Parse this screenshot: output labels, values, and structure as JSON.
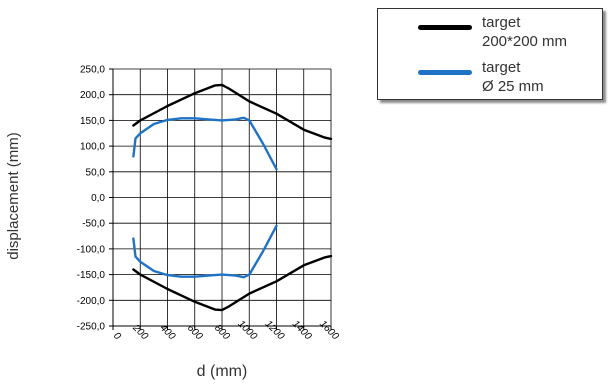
{
  "chart_data": {
    "type": "line",
    "title": "",
    "xlabel": "d (mm)",
    "ylabel": "displacement (mm)",
    "xlim": [
      0,
      1600
    ],
    "ylim": [
      -250,
      250
    ],
    "x_ticks": [
      "0",
      "200",
      "400",
      "600",
      "800",
      "1000",
      "1200",
      "1400",
      "1600"
    ],
    "y_ticks": [
      "250,0",
      "200,0",
      "150,0",
      "100,0",
      "50,0",
      "0,0",
      "-50,0",
      "-100,0",
      "-150,0",
      "-200,0",
      "-250,0"
    ],
    "grid": true,
    "legend_position": "top-right",
    "series": [
      {
        "name": "target\n200*200 mm",
        "color": "#000000",
        "upper": [
          [
            150,
            140
          ],
          [
            200,
            150
          ],
          [
            400,
            178
          ],
          [
            600,
            203
          ],
          [
            750,
            218
          ],
          [
            800,
            219
          ],
          [
            850,
            212
          ],
          [
            1000,
            187
          ],
          [
            1200,
            163
          ],
          [
            1400,
            132
          ],
          [
            1550,
            117
          ],
          [
            1600,
            114
          ]
        ],
        "lower": [
          [
            150,
            -140
          ],
          [
            200,
            -150
          ],
          [
            400,
            -178
          ],
          [
            600,
            -203
          ],
          [
            750,
            -218
          ],
          [
            800,
            -219
          ],
          [
            850,
            -212
          ],
          [
            1000,
            -187
          ],
          [
            1200,
            -163
          ],
          [
            1400,
            -132
          ],
          [
            1550,
            -117
          ],
          [
            1600,
            -114
          ]
        ]
      },
      {
        "name": "target\nØ 25 mm",
        "color": "#1f73c7",
        "upper": [
          [
            150,
            80
          ],
          [
            165,
            115
          ],
          [
            200,
            125
          ],
          [
            300,
            143
          ],
          [
            400,
            151
          ],
          [
            500,
            154
          ],
          [
            600,
            154
          ],
          [
            700,
            152
          ],
          [
            800,
            150
          ],
          [
            900,
            152
          ],
          [
            960,
            155
          ],
          [
            1000,
            150
          ],
          [
            1100,
            105
          ],
          [
            1200,
            55
          ]
        ],
        "lower": [
          [
            150,
            -80
          ],
          [
            165,
            -115
          ],
          [
            200,
            -125
          ],
          [
            300,
            -143
          ],
          [
            400,
            -151
          ],
          [
            500,
            -154
          ],
          [
            600,
            -154
          ],
          [
            700,
            -152
          ],
          [
            800,
            -150
          ],
          [
            900,
            -152
          ],
          [
            960,
            -155
          ],
          [
            1000,
            -150
          ],
          [
            1100,
            -105
          ],
          [
            1200,
            -55
          ]
        ]
      }
    ]
  }
}
